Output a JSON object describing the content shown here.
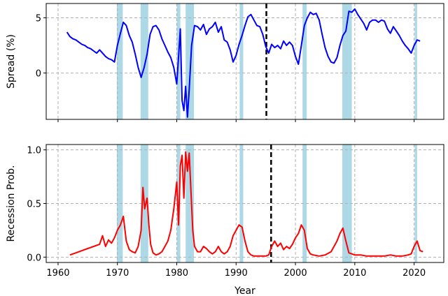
{
  "figure": {
    "xlabel": "Year",
    "x_ticks": [
      1960,
      1970,
      1980,
      1990,
      2000,
      2010,
      2020
    ],
    "x_range": [
      1958,
      2025
    ],
    "recession_color": "#add8e6",
    "grid": true
  },
  "chart_data": [
    {
      "type": "line",
      "title": "",
      "xlabel": "",
      "ylabel": "Spread (%)",
      "ylim": [
        -4.2,
        6.3
      ],
      "y_ticks": [
        0,
        5
      ],
      "line_color": "#0000ff",
      "vline": {
        "x": 1995.1,
        "style": "dashed",
        "color": "#000000"
      },
      "recessions": [
        [
          1969.9,
          1970.9
        ],
        [
          1973.9,
          1975.2
        ],
        [
          1980.0,
          1980.6
        ],
        [
          1981.5,
          1982.9
        ],
        [
          1990.6,
          1991.2
        ],
        [
          2001.2,
          2001.9
        ],
        [
          2007.9,
          2009.5
        ],
        [
          2020.1,
          2020.5
        ]
      ],
      "series": [
        {
          "x": [
            1961.5,
            1962.0,
            1962.5,
            1963.0,
            1963.5,
            1964.0,
            1964.5,
            1965.0,
            1965.5,
            1966.0,
            1966.5,
            1967.0,
            1967.5,
            1968.0,
            1968.5,
            1969.0,
            1969.5,
            1970.0,
            1970.5,
            1971.0,
            1971.5,
            1972.0,
            1972.5,
            1973.0,
            1973.5,
            1974.0,
            1974.5,
            1975.0,
            1975.5,
            1976.0,
            1976.5,
            1977.0,
            1977.5,
            1978.0,
            1978.5,
            1979.0,
            1979.5,
            1980.0,
            1980.3,
            1980.6,
            1980.9,
            1981.2,
            1981.5,
            1981.8,
            1982.1,
            1982.5,
            1983.0,
            1983.5,
            1984.0,
            1984.5,
            1985.0,
            1985.5,
            1986.0,
            1986.5,
            1987.0,
            1987.5,
            1988.0,
            1988.5,
            1989.0,
            1989.5,
            1990.0,
            1990.5,
            1991.0,
            1991.5,
            1992.0,
            1992.5,
            1993.0,
            1993.5,
            1994.0,
            1994.5,
            1995.0,
            1995.5,
            1996.0,
            1996.5,
            1997.0,
            1997.5,
            1998.0,
            1998.5,
            1999.0,
            1999.5,
            2000.0,
            2000.5,
            2001.0,
            2001.5,
            2002.0,
            2002.5,
            2003.0,
            2003.5,
            2004.0,
            2004.5,
            2005.0,
            2005.5,
            2006.0,
            2006.5,
            2007.0,
            2007.5,
            2008.0,
            2008.5,
            2009.0,
            2009.5,
            2010.0,
            2010.5,
            2011.0,
            2011.5,
            2012.0,
            2012.5,
            2013.0,
            2013.5,
            2014.0,
            2014.5,
            2015.0,
            2015.5,
            2016.0,
            2016.5,
            2017.0,
            2017.5,
            2018.0,
            2018.5,
            2019.0,
            2019.5,
            2020.0,
            2020.5,
            2021.0
          ],
          "y": [
            3.7,
            3.3,
            3.1,
            3.0,
            2.8,
            2.6,
            2.5,
            2.3,
            2.2,
            2.0,
            1.8,
            2.1,
            1.8,
            1.5,
            1.3,
            1.2,
            1.0,
            2.5,
            3.6,
            4.6,
            4.3,
            3.4,
            2.8,
            1.7,
            0.5,
            -0.4,
            0.5,
            1.7,
            3.5,
            4.2,
            4.3,
            3.9,
            3.1,
            2.5,
            1.9,
            1.4,
            0.5,
            -1.0,
            1.5,
            4.0,
            -2.5,
            -3.4,
            -1.2,
            -4.0,
            -1.5,
            2.5,
            4.3,
            4.2,
            3.9,
            4.4,
            3.5,
            4.0,
            4.2,
            4.6,
            3.7,
            4.2,
            3.0,
            2.8,
            2.1,
            1.0,
            1.6,
            2.6,
            3.4,
            4.3,
            5.1,
            5.3,
            4.8,
            4.3,
            4.2,
            3.5,
            2.4,
            1.8,
            2.6,
            2.3,
            2.5,
            2.2,
            2.9,
            2.5,
            2.8,
            2.5,
            1.5,
            0.8,
            2.5,
            4.3,
            5.0,
            5.5,
            5.3,
            5.4,
            4.8,
            3.5,
            2.3,
            1.5,
            1.0,
            0.9,
            1.4,
            2.5,
            3.4,
            3.8,
            5.6,
            5.5,
            5.8,
            5.3,
            4.9,
            4.5,
            3.9,
            4.6,
            4.8,
            4.8,
            4.6,
            4.8,
            4.7,
            4.0,
            3.6,
            4.2,
            3.8,
            3.4,
            2.9,
            2.5,
            2.2,
            1.8,
            2.5,
            3.0,
            2.9
          ]
        }
      ]
    },
    {
      "type": "line",
      "title": "",
      "xlabel": "Year",
      "ylabel": "Recession Prob.",
      "ylim": [
        -0.05,
        1.05
      ],
      "y_ticks": [
        0.0,
        0.5,
        1.0
      ],
      "line_color": "#ff0000",
      "vline": {
        "x": 1995.9,
        "style": "dashed",
        "color": "#000000"
      },
      "recessions": [
        [
          1969.9,
          1970.9
        ],
        [
          1973.9,
          1975.2
        ],
        [
          1980.0,
          1980.6
        ],
        [
          1981.5,
          1982.9
        ],
        [
          1990.6,
          1991.2
        ],
        [
          2001.2,
          2001.9
        ],
        [
          2007.9,
          2009.5
        ],
        [
          2020.1,
          2020.5
        ]
      ],
      "series": [
        {
          "x": [
            1962.0,
            1963.0,
            1964.0,
            1965.0,
            1966.0,
            1967.0,
            1967.5,
            1968.0,
            1968.5,
            1969.0,
            1969.5,
            1970.0,
            1970.5,
            1971.0,
            1971.5,
            1972.0,
            1972.5,
            1973.0,
            1973.5,
            1974.0,
            1974.3,
            1974.6,
            1975.0,
            1975.3,
            1975.6,
            1976.0,
            1976.5,
            1977.0,
            1977.5,
            1978.0,
            1978.5,
            1979.0,
            1979.5,
            1980.0,
            1980.3,
            1980.6,
            1980.9,
            1981.2,
            1981.5,
            1981.8,
            1982.1,
            1982.4,
            1982.7,
            1983.0,
            1983.5,
            1984.0,
            1984.5,
            1985.0,
            1985.5,
            1986.0,
            1986.5,
            1987.0,
            1987.5,
            1988.0,
            1988.5,
            1989.0,
            1989.5,
            1990.0,
            1990.5,
            1991.0,
            1991.5,
            1992.0,
            1992.5,
            1993.0,
            1994.0,
            1995.0,
            1995.5,
            1996.0,
            1996.5,
            1997.0,
            1997.5,
            1998.0,
            1998.5,
            1999.0,
            1999.5,
            2000.0,
            2000.5,
            2001.0,
            2001.5,
            2002.0,
            2002.5,
            2003.0,
            2004.0,
            2005.0,
            2006.0,
            2006.5,
            2007.0,
            2007.5,
            2008.0,
            2008.5,
            2009.0,
            2010.0,
            2011.0,
            2012.0,
            2013.0,
            2014.0,
            2015.0,
            2016.0,
            2017.0,
            2018.0,
            2019.0,
            2019.5,
            2020.0,
            2020.5,
            2021.0,
            2021.5
          ],
          "y": [
            0.02,
            0.04,
            0.06,
            0.08,
            0.1,
            0.12,
            0.2,
            0.1,
            0.16,
            0.13,
            0.18,
            0.25,
            0.3,
            0.38,
            0.15,
            0.07,
            0.05,
            0.04,
            0.1,
            0.25,
            0.65,
            0.45,
            0.55,
            0.3,
            0.12,
            0.04,
            0.02,
            0.03,
            0.05,
            0.1,
            0.15,
            0.25,
            0.45,
            0.7,
            0.3,
            0.85,
            0.95,
            0.55,
            0.98,
            0.8,
            0.97,
            0.6,
            0.25,
            0.1,
            0.05,
            0.05,
            0.1,
            0.08,
            0.05,
            0.03,
            0.05,
            0.1,
            0.05,
            0.03,
            0.05,
            0.1,
            0.2,
            0.25,
            0.3,
            0.28,
            0.15,
            0.05,
            0.02,
            0.01,
            0.01,
            0.01,
            0.02,
            0.1,
            0.15,
            0.1,
            0.13,
            0.07,
            0.1,
            0.08,
            0.12,
            0.18,
            0.22,
            0.3,
            0.25,
            0.08,
            0.03,
            0.02,
            0.01,
            0.02,
            0.05,
            0.1,
            0.15,
            0.22,
            0.27,
            0.15,
            0.04,
            0.02,
            0.02,
            0.01,
            0.01,
            0.01,
            0.01,
            0.02,
            0.01,
            0.01,
            0.02,
            0.03,
            0.1,
            0.15,
            0.06,
            0.05
          ]
        }
      ]
    }
  ]
}
